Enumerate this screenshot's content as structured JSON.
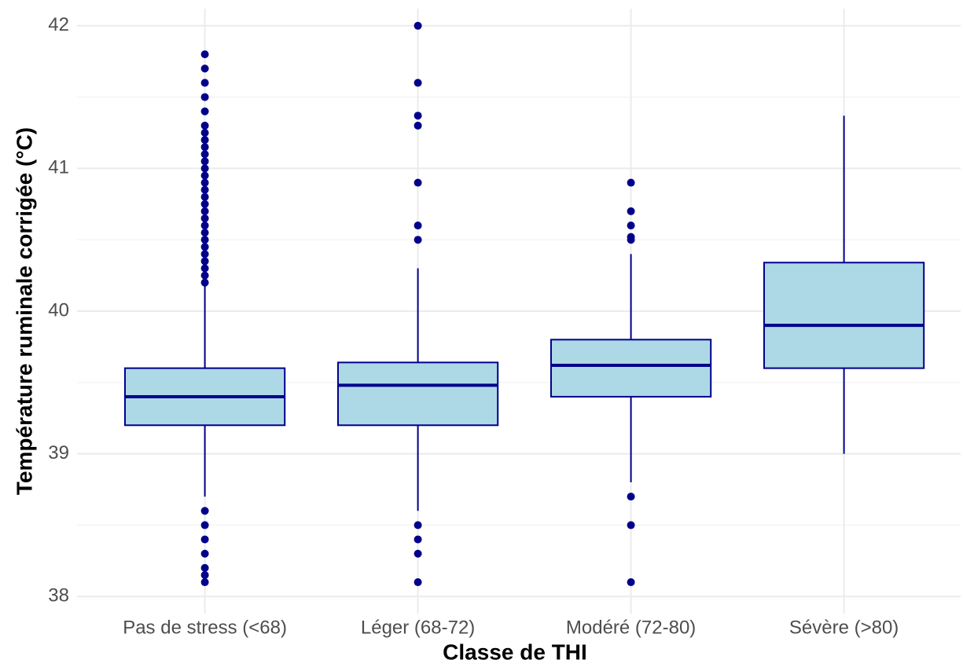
{
  "chart_data": {
    "type": "box",
    "y_label": "Température ruminale corrigée (°C)",
    "x_label": "Classe de THI",
    "categories": [
      "Pas de stress (<68)",
      "Léger (68-72)",
      "Modéré (72-80)",
      "Sévère (>80)"
    ],
    "boxes": [
      {
        "whislo": 38.7,
        "q1": 39.2,
        "med": 39.4,
        "q3": 39.6,
        "whishi": 40.2,
        "fliers": [
          41.8,
          41.7,
          41.6,
          41.5,
          41.4,
          41.3,
          41.25,
          41.2,
          41.15,
          41.1,
          41.05,
          41.0,
          40.95,
          40.9,
          40.85,
          40.8,
          40.75,
          40.7,
          40.65,
          40.6,
          40.55,
          40.5,
          40.45,
          40.4,
          40.35,
          40.3,
          40.25,
          40.2,
          38.6,
          38.5,
          38.4,
          38.3,
          38.2,
          38.15,
          38.1
        ]
      },
      {
        "whislo": 38.6,
        "q1": 39.2,
        "med": 39.48,
        "q3": 39.64,
        "whishi": 40.3,
        "fliers": [
          42.0,
          41.6,
          41.37,
          41.3,
          40.9,
          40.6,
          40.5,
          38.5,
          38.4,
          38.3,
          38.1
        ]
      },
      {
        "whislo": 38.8,
        "q1": 39.4,
        "med": 39.62,
        "q3": 39.8,
        "whishi": 40.4,
        "fliers": [
          40.9,
          40.7,
          40.6,
          40.52,
          40.5,
          38.7,
          38.5,
          38.1
        ]
      },
      {
        "whislo": 39.0,
        "q1": 39.6,
        "med": 39.9,
        "q3": 40.34,
        "whishi": 41.37,
        "fliers": []
      }
    ],
    "fill_color": "#add8e6",
    "edge_color": "#00008b",
    "ylim": [
      37.88,
      42.12
    ],
    "yticks": [
      38,
      39,
      40,
      41,
      42
    ],
    "grid": true
  }
}
